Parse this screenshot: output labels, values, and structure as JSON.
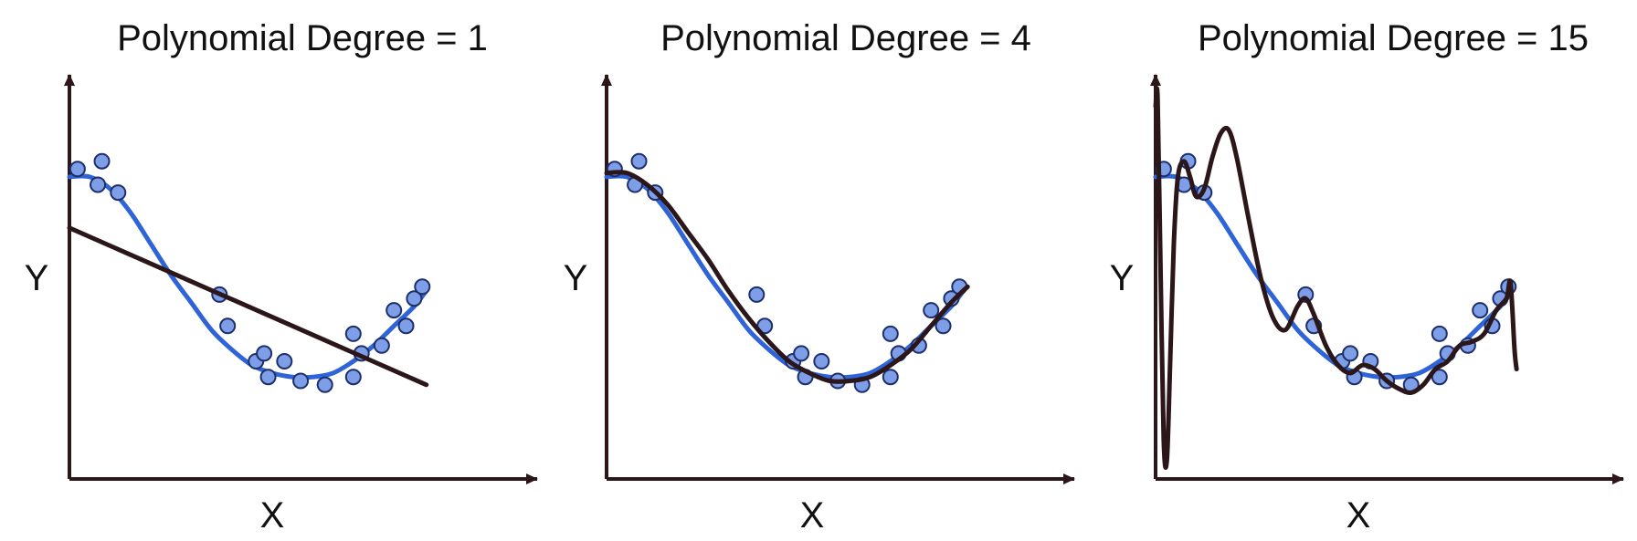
{
  "colors": {
    "true_curve": "#2f63d8",
    "fit_curve": "#2b1619",
    "point_fill": "#7f9ee8",
    "point_stroke": "#1c2f6a",
    "axis": "#2b1619"
  },
  "chart_data": [
    {
      "type": "scatter",
      "title": "Polynomial Degree = 1",
      "xlabel": "X",
      "ylabel": "Y",
      "xlim": [
        0,
        1
      ],
      "ylim": [
        0,
        1
      ],
      "grid": false,
      "points": [
        {
          "x": 0.02,
          "y": 0.79
        },
        {
          "x": 0.08,
          "y": 0.81
        },
        {
          "x": 0.07,
          "y": 0.75
        },
        {
          "x": 0.12,
          "y": 0.73
        },
        {
          "x": 0.37,
          "y": 0.47
        },
        {
          "x": 0.39,
          "y": 0.39
        },
        {
          "x": 0.46,
          "y": 0.3
        },
        {
          "x": 0.48,
          "y": 0.32
        },
        {
          "x": 0.49,
          "y": 0.26
        },
        {
          "x": 0.53,
          "y": 0.3
        },
        {
          "x": 0.57,
          "y": 0.25
        },
        {
          "x": 0.63,
          "y": 0.24
        },
        {
          "x": 0.7,
          "y": 0.26
        },
        {
          "x": 0.7,
          "y": 0.37
        },
        {
          "x": 0.72,
          "y": 0.32
        },
        {
          "x": 0.77,
          "y": 0.34
        },
        {
          "x": 0.8,
          "y": 0.43
        },
        {
          "x": 0.83,
          "y": 0.39
        },
        {
          "x": 0.85,
          "y": 0.46
        },
        {
          "x": 0.87,
          "y": 0.49
        }
      ],
      "true_curve": [
        {
          "x": 0.0,
          "y": 0.77
        },
        {
          "x": 0.05,
          "y": 0.77
        },
        {
          "x": 0.1,
          "y": 0.74
        },
        {
          "x": 0.15,
          "y": 0.68
        },
        {
          "x": 0.2,
          "y": 0.6
        },
        {
          "x": 0.25,
          "y": 0.52
        },
        {
          "x": 0.3,
          "y": 0.45
        },
        {
          "x": 0.35,
          "y": 0.38
        },
        {
          "x": 0.4,
          "y": 0.33
        },
        {
          "x": 0.45,
          "y": 0.29
        },
        {
          "x": 0.5,
          "y": 0.27
        },
        {
          "x": 0.55,
          "y": 0.26
        },
        {
          "x": 0.6,
          "y": 0.26
        },
        {
          "x": 0.65,
          "y": 0.27
        },
        {
          "x": 0.7,
          "y": 0.3
        },
        {
          "x": 0.75,
          "y": 0.34
        },
        {
          "x": 0.8,
          "y": 0.39
        },
        {
          "x": 0.85,
          "y": 0.44
        },
        {
          "x": 0.88,
          "y": 0.48
        }
      ],
      "fit_curve": [
        {
          "x": 0.0,
          "y": 0.64
        },
        {
          "x": 0.88,
          "y": 0.24
        }
      ]
    },
    {
      "type": "scatter",
      "title": "Polynomial Degree = 4",
      "xlabel": "X",
      "ylabel": "Y",
      "xlim": [
        0,
        1
      ],
      "ylim": [
        0,
        1
      ],
      "grid": false,
      "points": [
        {
          "x": 0.02,
          "y": 0.79
        },
        {
          "x": 0.08,
          "y": 0.81
        },
        {
          "x": 0.07,
          "y": 0.75
        },
        {
          "x": 0.12,
          "y": 0.73
        },
        {
          "x": 0.37,
          "y": 0.47
        },
        {
          "x": 0.39,
          "y": 0.39
        },
        {
          "x": 0.46,
          "y": 0.3
        },
        {
          "x": 0.48,
          "y": 0.32
        },
        {
          "x": 0.49,
          "y": 0.26
        },
        {
          "x": 0.53,
          "y": 0.3
        },
        {
          "x": 0.57,
          "y": 0.25
        },
        {
          "x": 0.63,
          "y": 0.24
        },
        {
          "x": 0.7,
          "y": 0.26
        },
        {
          "x": 0.7,
          "y": 0.37
        },
        {
          "x": 0.72,
          "y": 0.32
        },
        {
          "x": 0.77,
          "y": 0.34
        },
        {
          "x": 0.8,
          "y": 0.43
        },
        {
          "x": 0.83,
          "y": 0.39
        },
        {
          "x": 0.85,
          "y": 0.46
        },
        {
          "x": 0.87,
          "y": 0.49
        }
      ],
      "true_curve": [
        {
          "x": 0.0,
          "y": 0.77
        },
        {
          "x": 0.05,
          "y": 0.77
        },
        {
          "x": 0.1,
          "y": 0.74
        },
        {
          "x": 0.15,
          "y": 0.68
        },
        {
          "x": 0.2,
          "y": 0.6
        },
        {
          "x": 0.25,
          "y": 0.52
        },
        {
          "x": 0.3,
          "y": 0.45
        },
        {
          "x": 0.35,
          "y": 0.38
        },
        {
          "x": 0.4,
          "y": 0.33
        },
        {
          "x": 0.45,
          "y": 0.29
        },
        {
          "x": 0.5,
          "y": 0.27
        },
        {
          "x": 0.55,
          "y": 0.26
        },
        {
          "x": 0.6,
          "y": 0.26
        },
        {
          "x": 0.65,
          "y": 0.27
        },
        {
          "x": 0.7,
          "y": 0.3
        },
        {
          "x": 0.75,
          "y": 0.34
        },
        {
          "x": 0.8,
          "y": 0.39
        },
        {
          "x": 0.85,
          "y": 0.44
        },
        {
          "x": 0.88,
          "y": 0.48
        }
      ],
      "fit_curve": [
        {
          "x": 0.0,
          "y": 0.78
        },
        {
          "x": 0.05,
          "y": 0.78
        },
        {
          "x": 0.1,
          "y": 0.75
        },
        {
          "x": 0.15,
          "y": 0.7
        },
        {
          "x": 0.2,
          "y": 0.63
        },
        {
          "x": 0.25,
          "y": 0.56
        },
        {
          "x": 0.3,
          "y": 0.48
        },
        {
          "x": 0.35,
          "y": 0.41
        },
        {
          "x": 0.4,
          "y": 0.35
        },
        {
          "x": 0.45,
          "y": 0.3
        },
        {
          "x": 0.5,
          "y": 0.27
        },
        {
          "x": 0.55,
          "y": 0.25
        },
        {
          "x": 0.6,
          "y": 0.25
        },
        {
          "x": 0.65,
          "y": 0.26
        },
        {
          "x": 0.7,
          "y": 0.29
        },
        {
          "x": 0.75,
          "y": 0.33
        },
        {
          "x": 0.8,
          "y": 0.39
        },
        {
          "x": 0.85,
          "y": 0.45
        },
        {
          "x": 0.89,
          "y": 0.49
        }
      ]
    },
    {
      "type": "scatter",
      "title": "Polynomial Degree = 15",
      "xlabel": "X",
      "ylabel": "Y",
      "xlim": [
        0,
        1
      ],
      "ylim": [
        0,
        1
      ],
      "grid": false,
      "points": [
        {
          "x": 0.02,
          "y": 0.79
        },
        {
          "x": 0.08,
          "y": 0.81
        },
        {
          "x": 0.07,
          "y": 0.75
        },
        {
          "x": 0.12,
          "y": 0.73
        },
        {
          "x": 0.37,
          "y": 0.47
        },
        {
          "x": 0.39,
          "y": 0.39
        },
        {
          "x": 0.46,
          "y": 0.3
        },
        {
          "x": 0.48,
          "y": 0.32
        },
        {
          "x": 0.49,
          "y": 0.26
        },
        {
          "x": 0.53,
          "y": 0.3
        },
        {
          "x": 0.57,
          "y": 0.25
        },
        {
          "x": 0.63,
          "y": 0.24
        },
        {
          "x": 0.7,
          "y": 0.26
        },
        {
          "x": 0.7,
          "y": 0.37
        },
        {
          "x": 0.72,
          "y": 0.32
        },
        {
          "x": 0.77,
          "y": 0.34
        },
        {
          "x": 0.8,
          "y": 0.43
        },
        {
          "x": 0.83,
          "y": 0.39
        },
        {
          "x": 0.85,
          "y": 0.46
        },
        {
          "x": 0.87,
          "y": 0.49
        }
      ],
      "true_curve": [
        {
          "x": 0.0,
          "y": 0.77
        },
        {
          "x": 0.05,
          "y": 0.77
        },
        {
          "x": 0.1,
          "y": 0.74
        },
        {
          "x": 0.15,
          "y": 0.68
        },
        {
          "x": 0.2,
          "y": 0.6
        },
        {
          "x": 0.25,
          "y": 0.52
        },
        {
          "x": 0.3,
          "y": 0.45
        },
        {
          "x": 0.35,
          "y": 0.38
        },
        {
          "x": 0.4,
          "y": 0.33
        },
        {
          "x": 0.45,
          "y": 0.29
        },
        {
          "x": 0.5,
          "y": 0.27
        },
        {
          "x": 0.55,
          "y": 0.26
        },
        {
          "x": 0.6,
          "y": 0.26
        },
        {
          "x": 0.65,
          "y": 0.27
        },
        {
          "x": 0.7,
          "y": 0.3
        },
        {
          "x": 0.75,
          "y": 0.34
        },
        {
          "x": 0.8,
          "y": 0.39
        },
        {
          "x": 0.85,
          "y": 0.44
        },
        {
          "x": 0.88,
          "y": 0.48
        }
      ],
      "fit_curve": [
        {
          "x": 0.0,
          "y": 0.95
        },
        {
          "x": 0.005,
          "y": 0.97
        },
        {
          "x": 0.012,
          "y": 0.55
        },
        {
          "x": 0.02,
          "y": 0.1
        },
        {
          "x": 0.028,
          "y": 0.05
        },
        {
          "x": 0.036,
          "y": 0.3
        },
        {
          "x": 0.045,
          "y": 0.6
        },
        {
          "x": 0.055,
          "y": 0.77
        },
        {
          "x": 0.07,
          "y": 0.81
        },
        {
          "x": 0.085,
          "y": 0.77
        },
        {
          "x": 0.1,
          "y": 0.72
        },
        {
          "x": 0.12,
          "y": 0.74
        },
        {
          "x": 0.14,
          "y": 0.82
        },
        {
          "x": 0.16,
          "y": 0.88
        },
        {
          "x": 0.18,
          "y": 0.89
        },
        {
          "x": 0.2,
          "y": 0.82
        },
        {
          "x": 0.23,
          "y": 0.66
        },
        {
          "x": 0.26,
          "y": 0.51
        },
        {
          "x": 0.29,
          "y": 0.41
        },
        {
          "x": 0.32,
          "y": 0.38
        },
        {
          "x": 0.35,
          "y": 0.44
        },
        {
          "x": 0.37,
          "y": 0.46
        },
        {
          "x": 0.39,
          "y": 0.42
        },
        {
          "x": 0.42,
          "y": 0.34
        },
        {
          "x": 0.45,
          "y": 0.29
        },
        {
          "x": 0.48,
          "y": 0.27
        },
        {
          "x": 0.51,
          "y": 0.29
        },
        {
          "x": 0.54,
          "y": 0.28
        },
        {
          "x": 0.57,
          "y": 0.25
        },
        {
          "x": 0.6,
          "y": 0.23
        },
        {
          "x": 0.63,
          "y": 0.22
        },
        {
          "x": 0.66,
          "y": 0.24
        },
        {
          "x": 0.69,
          "y": 0.28
        },
        {
          "x": 0.72,
          "y": 0.3
        },
        {
          "x": 0.75,
          "y": 0.34
        },
        {
          "x": 0.78,
          "y": 0.35
        },
        {
          "x": 0.81,
          "y": 0.37
        },
        {
          "x": 0.84,
          "y": 0.43
        },
        {
          "x": 0.865,
          "y": 0.46
        },
        {
          "x": 0.875,
          "y": 0.5
        },
        {
          "x": 0.885,
          "y": 0.33
        },
        {
          "x": 0.89,
          "y": 0.28
        }
      ]
    }
  ]
}
